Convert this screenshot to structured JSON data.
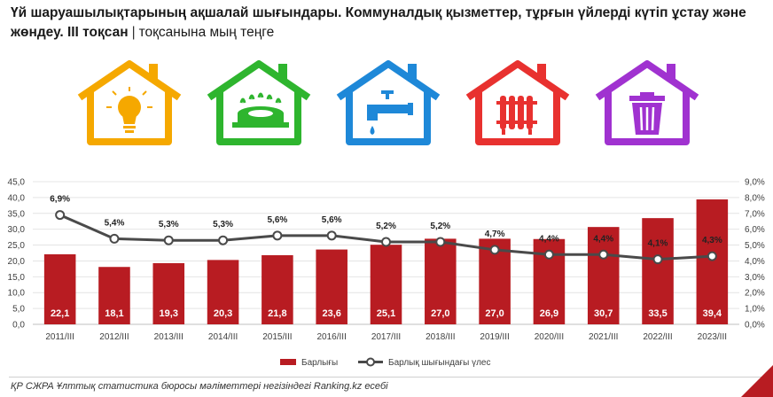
{
  "header": {
    "title_bold": "Үй шаруашылықтарының ақшалай шығындары. Коммуналдық қызметтер, тұрғын үйлерді күтіп ұстау және жөндеу. ІІІ тоқсан",
    "separator": "|",
    "unit": "тоқсанына мың теңге"
  },
  "icons": [
    {
      "name": "lightbulb-house-icon",
      "color": "#f5a800"
    },
    {
      "name": "gas-burner-house-icon",
      "color": "#2eb52e"
    },
    {
      "name": "water-tap-house-icon",
      "color": "#1e88d8"
    },
    {
      "name": "radiator-house-icon",
      "color": "#e8312f"
    },
    {
      "name": "trash-bin-house-icon",
      "color": "#a032d0"
    }
  ],
  "chart_data": {
    "type": "bar",
    "categories": [
      "2011/III",
      "2012/III",
      "2013/III",
      "2014/III",
      "2015/III",
      "2016/III",
      "2017/III",
      "2018/III",
      "2019/III",
      "2020/III",
      "2021/III",
      "2022/III",
      "2023/III"
    ],
    "series": [
      {
        "name": "Барлығы",
        "type": "bar",
        "color": "#b81c22",
        "axis": "left",
        "values": [
          22.1,
          18.1,
          19.3,
          20.3,
          21.8,
          23.6,
          25.1,
          27.0,
          27.0,
          26.9,
          30.7,
          33.5,
          39.4
        ],
        "labels": [
          "22,1",
          "18,1",
          "19,3",
          "20,3",
          "21,8",
          "23,6",
          "25,1",
          "27,0",
          "27,0",
          "26,9",
          "30,7",
          "33,5",
          "39,4"
        ]
      },
      {
        "name": "Барлық шығындағы үлес",
        "type": "line",
        "color": "#4a4a4a",
        "axis": "right",
        "values": [
          6.9,
          5.4,
          5.3,
          5.3,
          5.6,
          5.6,
          5.2,
          5.2,
          4.7,
          4.4,
          4.4,
          4.1,
          4.3
        ],
        "labels": [
          "6,9%",
          "5,4%",
          "5,3%",
          "5,3%",
          "5,6%",
          "5,6%",
          "5,2%",
          "5,2%",
          "4,7%",
          "4,4%",
          "4,4%",
          "4,1%",
          "4,3%"
        ]
      }
    ],
    "ylim": [
      0,
      45
    ],
    "y2lim": [
      0,
      9
    ],
    "y_ticks": [
      "0,0",
      "5,0",
      "10,0",
      "15,0",
      "20,0",
      "25,0",
      "30,0",
      "35,0",
      "40,0",
      "45,0"
    ],
    "y2_ticks": [
      "0,0%",
      "1,0%",
      "2,0%",
      "3,0%",
      "4,0%",
      "5,0%",
      "6,0%",
      "7,0%",
      "8,0%",
      "9,0%"
    ],
    "grid": true,
    "legend_position": "bottom-center"
  },
  "footer": {
    "source": "ҚР СЖРА Ұлттық статистика бюросы мәліметтері негізіндегі Ranking.kz есебі"
  }
}
